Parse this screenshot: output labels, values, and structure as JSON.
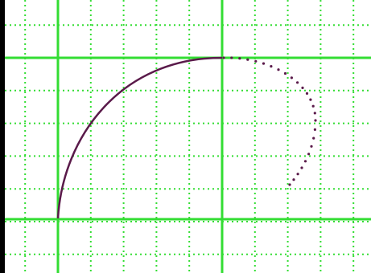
{
  "colors": {
    "background": "#ffffff",
    "grid": "#33dd33",
    "curve": "#5a1a4a",
    "edge": "#000000"
  },
  "grid": {
    "minor_style": "dotted",
    "major_style": "solid"
  },
  "curve": {
    "solid_segment": "quarter-arc",
    "dotted_segment": "arc-continuation"
  }
}
